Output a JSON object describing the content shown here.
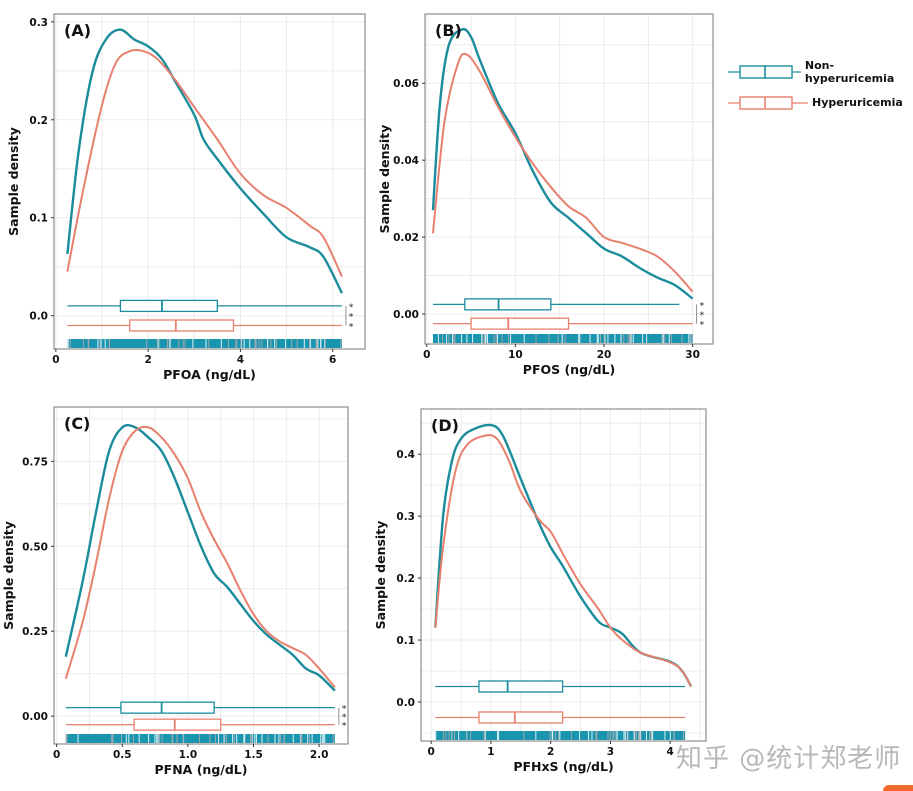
{
  "colors": {
    "non_hyperuricemia": "#1a8c9c",
    "hyperuricemia": "#e8806e",
    "rug": "#1a95b0",
    "grid": "#ebebeb"
  },
  "legend": {
    "items": [
      {
        "label": "Non-hyperuricemia",
        "color": "#1a8c9c"
      },
      {
        "label": "Hyperuricemia",
        "color": "#e8806e"
      }
    ]
  },
  "watermark": "知乎 @统计郑老师",
  "chart_data": [
    {
      "type": "line",
      "panel_label": "(A)",
      "xlabel": "PFOA  (ng/dL)",
      "ylabel": "Sample density",
      "xlim": [
        -0.04,
        6.7
      ],
      "ylim": [
        -0.034,
        0.308
      ],
      "xticks": [
        0,
        2,
        4,
        6
      ],
      "xtick_labels": [
        "0",
        "2",
        "4",
        "6"
      ],
      "yticks": [
        0.0,
        0.1,
        0.2,
        0.3
      ],
      "ytick_labels": [
        "0.0",
        "0.1",
        "0.2",
        "0.3"
      ],
      "grid": true,
      "significance": "***",
      "series": [
        {
          "name": "Non-hyperuricemia",
          "x": [
            0.25,
            0.5,
            0.8,
            1.1,
            1.4,
            1.7,
            2.0,
            2.3,
            2.6,
            3.0,
            3.2,
            3.5,
            4.0,
            4.5,
            5.0,
            5.5,
            5.8,
            6.2
          ],
          "y": [
            0.063,
            0.17,
            0.25,
            0.283,
            0.292,
            0.282,
            0.275,
            0.262,
            0.238,
            0.205,
            0.18,
            0.16,
            0.13,
            0.104,
            0.08,
            0.07,
            0.06,
            0.023
          ],
          "box": {
            "min": 0.25,
            "q1": 1.4,
            "median": 2.3,
            "q3": 3.5,
            "max": 6.2,
            "y": 0.01
          }
        },
        {
          "name": "Hyperuricemia",
          "x": [
            0.25,
            0.6,
            1.0,
            1.3,
            1.6,
            1.9,
            2.2,
            2.6,
            3.0,
            3.5,
            4.0,
            4.5,
            5.0,
            5.5,
            5.8,
            6.2
          ],
          "y": [
            0.045,
            0.13,
            0.215,
            0.258,
            0.27,
            0.27,
            0.262,
            0.24,
            0.213,
            0.18,
            0.145,
            0.123,
            0.11,
            0.092,
            0.08,
            0.04
          ],
          "box": {
            "min": 0.25,
            "q1": 1.6,
            "median": 2.6,
            "q3": 3.85,
            "max": 6.2,
            "y": -0.01
          }
        }
      ]
    },
    {
      "type": "line",
      "panel_label": "(B)",
      "xlabel": "PFOS (ng/dL)",
      "ylabel": "Sample density",
      "xlim": [
        -0.2,
        32.3
      ],
      "ylim": [
        -0.0078,
        0.078
      ],
      "xticks": [
        0,
        10,
        20,
        30
      ],
      "xtick_labels": [
        "0",
        "10",
        "20",
        "30"
      ],
      "yticks": [
        0.0,
        0.02,
        0.04,
        0.06
      ],
      "ytick_labels": [
        "0.00",
        "0.02",
        "0.04",
        "0.06"
      ],
      "grid": true,
      "significance": "***",
      "series": [
        {
          "name": "Non-hyperuricemia",
          "x": [
            0.7,
            1.5,
            2.5,
            4,
            5,
            6,
            8,
            10,
            12,
            14,
            16,
            18,
            20,
            22,
            24,
            26,
            28,
            30
          ],
          "y": [
            0.027,
            0.055,
            0.07,
            0.074,
            0.072,
            0.066,
            0.055,
            0.047,
            0.037,
            0.029,
            0.025,
            0.021,
            0.017,
            0.015,
            0.012,
            0.0095,
            0.0075,
            0.004
          ],
          "box": {
            "min": 0.7,
            "q1": 4.3,
            "median": 8.1,
            "q3": 14,
            "max": 28.5,
            "y": 0.0025
          }
        },
        {
          "name": "Hyperuricemia",
          "x": [
            0.7,
            2,
            3.5,
            4.5,
            6,
            8,
            10,
            12,
            14,
            16,
            18,
            20,
            22,
            24,
            26,
            28,
            30
          ],
          "y": [
            0.021,
            0.05,
            0.065,
            0.0675,
            0.063,
            0.054,
            0.046,
            0.039,
            0.033,
            0.028,
            0.025,
            0.02,
            0.0185,
            0.017,
            0.015,
            0.011,
            0.0058
          ],
          "box": {
            "min": 0.7,
            "q1": 5,
            "median": 9.2,
            "q3": 16,
            "max": 30,
            "y": -0.0025
          }
        }
      ]
    },
    {
      "type": "line",
      "panel_label": "(C)",
      "xlabel": "PFNA (ng/dL)",
      "ylabel": "Sample density",
      "xlim": [
        -0.02,
        2.22
      ],
      "ylim": [
        -0.082,
        0.91
      ],
      "xticks": [
        0,
        0.5,
        1.0,
        1.5,
        2.0
      ],
      "xtick_labels": [
        "0",
        "0.5",
        "1.0",
        "1.5",
        "2.0"
      ],
      "yticks": [
        0.0,
        0.25,
        0.5,
        0.75
      ],
      "ytick_labels": [
        "0.00",
        "0.25",
        "0.50",
        "0.75"
      ],
      "grid": true,
      "significance": "***",
      "series": [
        {
          "name": "Non-hyperuricemia",
          "x": [
            0.07,
            0.2,
            0.3,
            0.4,
            0.5,
            0.6,
            0.7,
            0.8,
            0.9,
            1.0,
            1.1,
            1.2,
            1.3,
            1.4,
            1.5,
            1.6,
            1.7,
            1.8,
            1.9,
            2.0,
            2.12
          ],
          "y": [
            0.175,
            0.4,
            0.6,
            0.78,
            0.85,
            0.85,
            0.82,
            0.78,
            0.7,
            0.6,
            0.5,
            0.42,
            0.38,
            0.33,
            0.28,
            0.24,
            0.21,
            0.18,
            0.14,
            0.12,
            0.075
          ],
          "box": {
            "min": 0.07,
            "q1": 0.49,
            "median": 0.8,
            "q3": 1.2,
            "max": 2.12,
            "y": 0.025
          }
        },
        {
          "name": "Hyperuricemia",
          "x": [
            0.07,
            0.2,
            0.3,
            0.4,
            0.5,
            0.6,
            0.7,
            0.8,
            0.9,
            1.0,
            1.1,
            1.2,
            1.3,
            1.4,
            1.5,
            1.6,
            1.7,
            1.8,
            1.9,
            2.0,
            2.12
          ],
          "y": [
            0.11,
            0.28,
            0.45,
            0.64,
            0.78,
            0.84,
            0.85,
            0.82,
            0.77,
            0.7,
            0.6,
            0.52,
            0.45,
            0.37,
            0.3,
            0.25,
            0.22,
            0.2,
            0.18,
            0.14,
            0.085
          ],
          "box": {
            "min": 0.07,
            "q1": 0.59,
            "median": 0.9,
            "q3": 1.25,
            "max": 2.12,
            "y": -0.025
          }
        }
      ]
    },
    {
      "type": "line",
      "panel_label": "(D)",
      "xlabel": "PFHxS  (ng/dL)",
      "ylabel": "Sample density",
      "xlim": [
        -0.17,
        4.6
      ],
      "ylim": [
        -0.063,
        0.473
      ],
      "xticks": [
        0,
        1,
        2,
        3,
        4
      ],
      "xtick_labels": [
        "0",
        "1",
        "2",
        "3",
        "4"
      ],
      "yticks": [
        0.0,
        0.1,
        0.2,
        0.3,
        0.4
      ],
      "ytick_labels": [
        "0.0",
        "0.1",
        "0.2",
        "0.3",
        "0.4"
      ],
      "grid": true,
      "significance": "",
      "series": [
        {
          "name": "Non-hyperuricemia",
          "x": [
            0.07,
            0.2,
            0.35,
            0.5,
            0.7,
            1.0,
            1.2,
            1.5,
            1.8,
            2.0,
            2.2,
            2.5,
            2.8,
            3.0,
            3.2,
            3.5,
            4.0,
            4.2,
            4.35
          ],
          "y": [
            0.12,
            0.3,
            0.39,
            0.425,
            0.44,
            0.447,
            0.43,
            0.36,
            0.29,
            0.25,
            0.22,
            0.17,
            0.13,
            0.12,
            0.11,
            0.08,
            0.065,
            0.05,
            0.025
          ],
          "box": {
            "min": 0.07,
            "q1": 0.8,
            "median": 1.28,
            "q3": 2.2,
            "max": 4.25,
            "y": 0.025
          }
        },
        {
          "name": "Hyperuricemia",
          "x": [
            0.07,
            0.2,
            0.4,
            0.6,
            0.9,
            1.1,
            1.3,
            1.5,
            1.8,
            2.0,
            2.2,
            2.5,
            2.8,
            3.0,
            3.2,
            3.5,
            4.0,
            4.2,
            4.35
          ],
          "y": [
            0.12,
            0.25,
            0.37,
            0.415,
            0.43,
            0.425,
            0.39,
            0.34,
            0.295,
            0.275,
            0.24,
            0.19,
            0.15,
            0.12,
            0.1,
            0.08,
            0.064,
            0.05,
            0.025
          ],
          "box": {
            "min": 0.07,
            "q1": 0.8,
            "median": 1.4,
            "q3": 2.2,
            "max": 4.25,
            "y": -0.025
          }
        }
      ]
    }
  ]
}
